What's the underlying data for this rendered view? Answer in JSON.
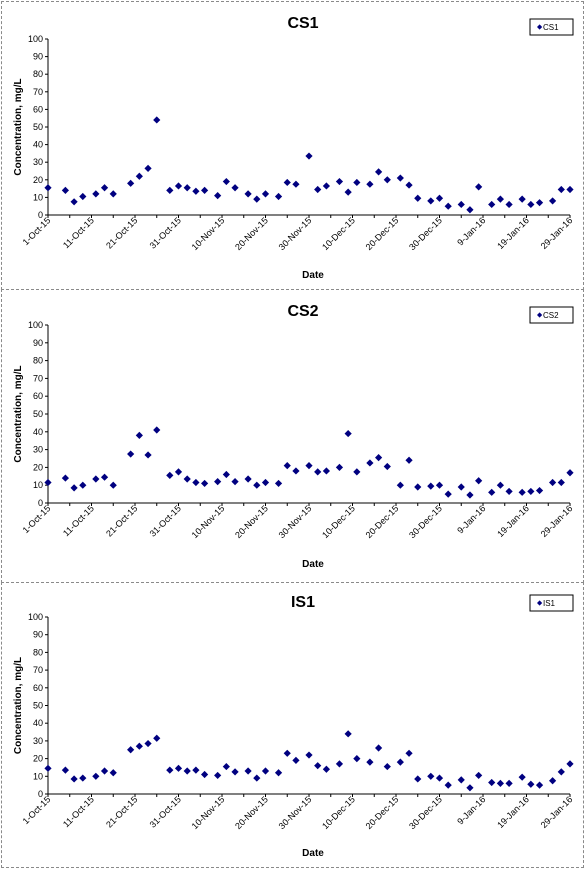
{
  "chart_data": [
    {
      "type": "scatter",
      "title": "CS1",
      "xlabel": "Date",
      "ylabel": "Concentration, mg/L",
      "legend": "CS1",
      "legend_position": "top-right",
      "ylim": [
        0,
        100
      ],
      "yticks": [
        "0",
        "10",
        "20",
        "30",
        "40",
        "50",
        "60",
        "70",
        "80",
        "90",
        "100"
      ],
      "xlim": [
        "2015-10-01",
        "2016-01-29"
      ],
      "xticks": [
        "1-Oct-15",
        "11-Oct-15",
        "21-Oct-15",
        "31-Oct-15",
        "10-Nov-15",
        "20-Nov-15",
        "30-Nov-15",
        "10-Dec-15",
        "20-Dec-15",
        "30-Dec-15",
        "9-Jan-16",
        "19-Jan-16",
        "29-Jan-16"
      ],
      "marker_color": "#000080",
      "grid": false,
      "x": [
        "2015-10-01",
        "2015-10-05",
        "2015-10-07",
        "2015-10-09",
        "2015-10-12",
        "2015-10-14",
        "2015-10-16",
        "2015-10-20",
        "2015-10-22",
        "2015-10-24",
        "2015-10-26",
        "2015-10-29",
        "2015-10-31",
        "2015-11-02",
        "2015-11-04",
        "2015-11-06",
        "2015-11-09",
        "2015-11-11",
        "2015-11-13",
        "2015-11-16",
        "2015-11-18",
        "2015-11-20",
        "2015-11-23",
        "2015-11-25",
        "2015-11-27",
        "2015-11-30",
        "2015-12-02",
        "2015-12-04",
        "2015-12-07",
        "2015-12-09",
        "2015-12-11",
        "2015-12-14",
        "2015-12-16",
        "2015-12-18",
        "2015-12-21",
        "2015-12-23",
        "2015-12-25",
        "2015-12-28",
        "2015-12-30",
        "2016-01-01",
        "2016-01-04",
        "2016-01-06",
        "2016-01-08",
        "2016-01-11",
        "2016-01-13",
        "2016-01-15",
        "2016-01-18",
        "2016-01-20",
        "2016-01-22",
        "2016-01-25",
        "2016-01-27",
        "2016-01-29"
      ],
      "y": [
        15.5,
        14,
        7.5,
        10.5,
        12,
        15.5,
        12,
        18,
        22,
        26.5,
        54,
        14,
        16.5,
        15.5,
        13.5,
        14,
        11,
        19,
        15.5,
        12,
        9,
        12,
        10.5,
        18.5,
        17.5,
        33.5,
        14.5,
        16.5,
        19,
        13,
        18.5,
        17.5,
        24.5,
        20,
        21,
        17,
        9.5,
        8,
        9.5,
        5,
        6,
        3,
        16,
        6,
        9,
        6,
        9,
        6,
        7,
        8,
        14.5,
        14.5
      ]
    },
    {
      "type": "scatter",
      "title": "CS2",
      "xlabel": "Date",
      "ylabel": "Concentration, mg/L",
      "legend": "CS2",
      "legend_position": "top-right",
      "ylim": [
        0,
        100
      ],
      "yticks": [
        "0",
        "10",
        "20",
        "30",
        "40",
        "50",
        "60",
        "70",
        "80",
        "90",
        "100"
      ],
      "xlim": [
        "2015-10-01",
        "2016-01-29"
      ],
      "xticks": [
        "1-Oct-15",
        "11-Oct-15",
        "21-Oct-15",
        "31-Oct-15",
        "10-Nov-15",
        "20-Nov-15",
        "30-Nov-15",
        "10-Dec-15",
        "20-Dec-15",
        "30-Dec-15",
        "9-Jan-16",
        "19-Jan-16",
        "29-Jan-16"
      ],
      "marker_color": "#000080",
      "grid": false,
      "x": [
        "2015-10-01",
        "2015-10-05",
        "2015-10-07",
        "2015-10-09",
        "2015-10-12",
        "2015-10-14",
        "2015-10-16",
        "2015-10-20",
        "2015-10-22",
        "2015-10-24",
        "2015-10-26",
        "2015-10-29",
        "2015-10-31",
        "2015-11-02",
        "2015-11-04",
        "2015-11-06",
        "2015-11-09",
        "2015-11-11",
        "2015-11-13",
        "2015-11-16",
        "2015-11-18",
        "2015-11-20",
        "2015-11-23",
        "2015-11-25",
        "2015-11-27",
        "2015-11-30",
        "2015-12-02",
        "2015-12-04",
        "2015-12-07",
        "2015-12-09",
        "2015-12-11",
        "2015-12-14",
        "2015-12-16",
        "2015-12-18",
        "2015-12-21",
        "2015-12-23",
        "2015-12-25",
        "2015-12-28",
        "2015-12-30",
        "2016-01-01",
        "2016-01-04",
        "2016-01-06",
        "2016-01-08",
        "2016-01-11",
        "2016-01-13",
        "2016-01-15",
        "2016-01-18",
        "2016-01-20",
        "2016-01-22",
        "2016-01-25",
        "2016-01-27",
        "2016-01-29"
      ],
      "y": [
        11.5,
        14,
        8.5,
        10,
        13.5,
        14.5,
        10,
        27.5,
        38,
        27,
        41,
        15.5,
        17.5,
        13.5,
        11.5,
        11,
        12,
        16,
        12,
        13.5,
        10,
        11.5,
        11,
        21,
        18,
        21,
        17.5,
        18,
        20,
        39,
        17.5,
        22.5,
        25.5,
        20.5,
        10,
        24,
        9,
        9.5,
        10,
        5,
        9,
        4.5,
        12.5,
        6,
        10,
        6.5,
        6,
        6.5,
        7,
        11.5,
        11.5,
        17
      ]
    },
    {
      "type": "scatter",
      "title": "IS1",
      "xlabel": "Date",
      "ylabel": "Concentration, mg/L",
      "legend": "IS1",
      "legend_position": "top-right",
      "ylim": [
        0,
        100
      ],
      "yticks": [
        "0",
        "10",
        "20",
        "30",
        "40",
        "50",
        "60",
        "70",
        "80",
        "90",
        "100"
      ],
      "xlim": [
        "2015-10-01",
        "2016-01-29"
      ],
      "xticks": [
        "1-Oct-15",
        "11-Oct-15",
        "21-Oct-15",
        "31-Oct-15",
        "10-Nov-15",
        "20-Nov-15",
        "30-Nov-15",
        "10-Dec-15",
        "20-Dec-15",
        "30-Dec-15",
        "9-Jan-16",
        "19-Jan-16",
        "29-Jan-16"
      ],
      "marker_color": "#000080",
      "grid": false,
      "x": [
        "2015-10-01",
        "2015-10-05",
        "2015-10-07",
        "2015-10-09",
        "2015-10-12",
        "2015-10-14",
        "2015-10-16",
        "2015-10-20",
        "2015-10-22",
        "2015-10-24",
        "2015-10-26",
        "2015-10-29",
        "2015-10-31",
        "2015-11-02",
        "2015-11-04",
        "2015-11-06",
        "2015-11-09",
        "2015-11-11",
        "2015-11-13",
        "2015-11-16",
        "2015-11-18",
        "2015-11-20",
        "2015-11-23",
        "2015-11-25",
        "2015-11-27",
        "2015-11-30",
        "2015-12-02",
        "2015-12-04",
        "2015-12-07",
        "2015-12-09",
        "2015-12-11",
        "2015-12-14",
        "2015-12-16",
        "2015-12-18",
        "2015-12-21",
        "2015-12-23",
        "2015-12-25",
        "2015-12-28",
        "2015-12-30",
        "2016-01-01",
        "2016-01-04",
        "2016-01-06",
        "2016-01-08",
        "2016-01-11",
        "2016-01-13",
        "2016-01-15",
        "2016-01-18",
        "2016-01-20",
        "2016-01-22",
        "2016-01-25",
        "2016-01-27",
        "2016-01-29"
      ],
      "y": [
        14.5,
        13.5,
        8.5,
        9,
        10,
        13,
        12,
        25,
        27,
        28.5,
        31.5,
        13.5,
        14.5,
        13,
        13.5,
        11,
        10.5,
        15.5,
        12.5,
        13,
        9,
        13,
        12,
        23,
        19,
        22,
        16,
        14,
        17,
        34,
        20,
        18,
        26,
        15.5,
        18,
        23,
        8.5,
        10,
        9,
        5,
        8,
        3.5,
        10.5,
        6.5,
        6,
        6,
        9.5,
        5.5,
        5,
        7.5,
        12.5,
        17
      ]
    }
  ]
}
